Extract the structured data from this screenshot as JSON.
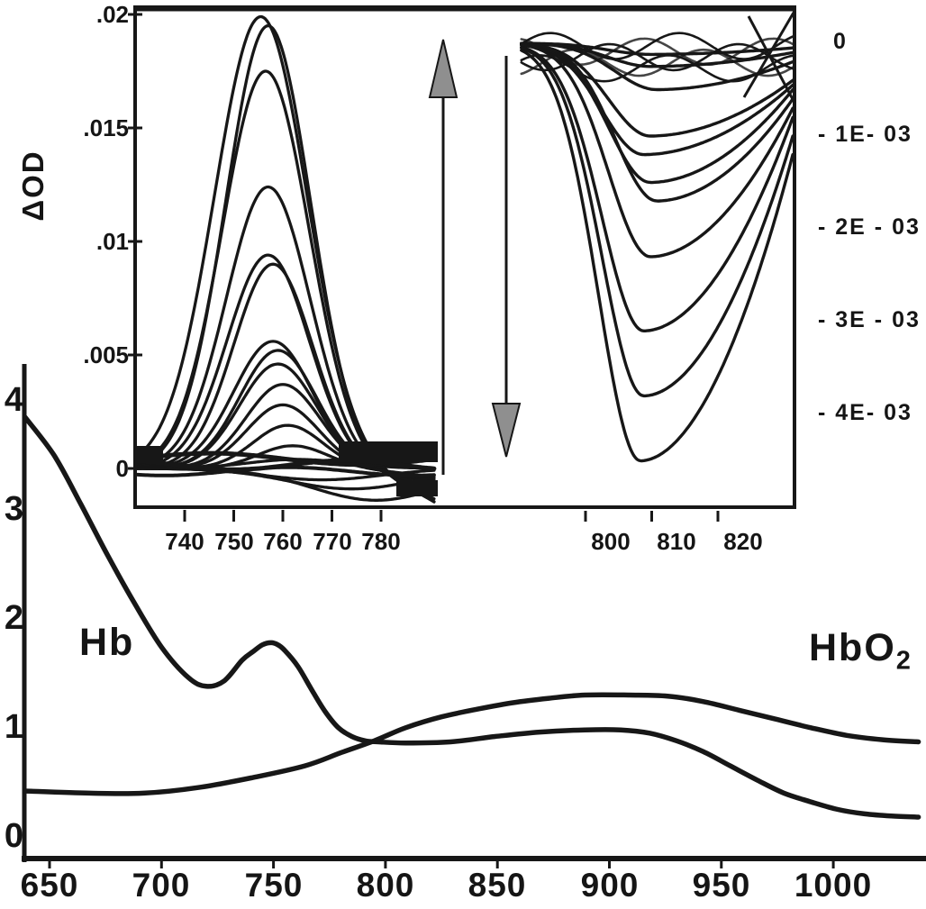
{
  "labels": {
    "delta_od": "ΔOD",
    "hb": "Hb",
    "hbo2_main": "HbO",
    "hbo2_sub": "2"
  },
  "colors": {
    "ink": "#171717",
    "background": "#ffffff",
    "arrowhead_fill": "#8f8f8f"
  },
  "chart_data": [
    {
      "id": "main-spectra",
      "type": "line",
      "description": "Absorption spectra of Hb and HbO2 versus wavelength (nm)",
      "xlim": [
        639,
        1041
      ],
      "ylim": [
        0,
        4.4
      ],
      "xticks": [
        650,
        700,
        750,
        800,
        850,
        900,
        950,
        1000
      ],
      "xtick_labels": [
        "650",
        "700",
        "750",
        "800",
        "850",
        "900",
        "950",
        "1000"
      ],
      "yticks": [
        4,
        3,
        2,
        1,
        0
      ],
      "ytick_labels": [
        "4",
        "3",
        "2",
        "1",
        "0"
      ],
      "series": [
        {
          "name": "Hb",
          "x": [
            639,
            652,
            664,
            676,
            688,
            700,
            712,
            720,
            728,
            736,
            741,
            745,
            749,
            752,
            755,
            761,
            767,
            773,
            779,
            785,
            791,
            797,
            809,
            829,
            849,
            869,
            889,
            905,
            918,
            930,
            942,
            954,
            966,
            978,
            990,
            1002,
            1014,
            1026,
            1038
          ],
          "y": [
            3.86,
            3.51,
            3.06,
            2.59,
            2.15,
            1.75,
            1.47,
            1.39,
            1.44,
            1.63,
            1.71,
            1.77,
            1.79,
            1.77,
            1.72,
            1.57,
            1.36,
            1.16,
            1.01,
            0.93,
            0.89,
            0.88,
            0.87,
            0.88,
            0.93,
            0.97,
            0.99,
            0.99,
            0.96,
            0.89,
            0.79,
            0.66,
            0.53,
            0.41,
            0.33,
            0.26,
            0.22,
            0.2,
            0.19
          ]
        },
        {
          "name": "HbO2",
          "x": [
            639,
            668,
            692,
            716,
            740,
            764,
            780,
            795,
            809,
            825,
            841,
            857,
            873,
            889,
            909,
            926,
            942,
            958,
            974,
            990,
            1006,
            1022,
            1038
          ],
          "y": [
            0.43,
            0.41,
            0.41,
            0.46,
            0.55,
            0.66,
            0.78,
            0.89,
            1.01,
            1.11,
            1.18,
            1.24,
            1.28,
            1.31,
            1.31,
            1.3,
            1.25,
            1.17,
            1.09,
            1.01,
            0.94,
            0.9,
            0.88
          ]
        }
      ]
    },
    {
      "id": "inset-left-760nm-family",
      "type": "line-family",
      "description": "ΔOD difference spectra family peaking near 757 nm, amplitude increasing (up arrow)",
      "ylabel": "ΔOD",
      "xlim": [
        730,
        791
      ],
      "ylim": [
        -0.0022,
        0.0205
      ],
      "xticks": [
        740,
        750,
        760,
        770,
        780
      ],
      "xtick_labels": [
        "740",
        "750",
        "760",
        "770",
        "780"
      ],
      "yticks": [
        0.02,
        0.015,
        0.01,
        0.005,
        0
      ],
      "ytick_labels": [
        ".02",
        ".015",
        ".01",
        ".005",
        "0"
      ],
      "trend_arrow": "up",
      "curves": [
        {
          "peak_od": 0.0199,
          "center_nm": 755.5,
          "width_nm": 9.4
        },
        {
          "peak_od": 0.0195,
          "center_nm": 757.0,
          "width_nm": 8.6
        },
        {
          "peak_od": 0.0175,
          "center_nm": 756.5,
          "width_nm": 8.8
        },
        {
          "peak_od": 0.0124,
          "center_nm": 757.0,
          "width_nm": 8.5
        },
        {
          "peak_od": 0.0094,
          "center_nm": 757.0,
          "width_nm": 8.3
        },
        {
          "peak_od": 0.009,
          "center_nm": 758.0,
          "width_nm": 8.0
        },
        {
          "peak_od": 0.0056,
          "center_nm": 758.0,
          "width_nm": 8.0
        },
        {
          "peak_od": 0.0052,
          "center_nm": 759.0,
          "width_nm": 7.8
        },
        {
          "peak_od": 0.0046,
          "center_nm": 759.0,
          "width_nm": 7.8
        },
        {
          "peak_od": 0.0037,
          "center_nm": 760.0,
          "width_nm": 7.5
        },
        {
          "peak_od": 0.0028,
          "center_nm": 760.0,
          "width_nm": 7.3
        },
        {
          "peak_od": 0.0019,
          "center_nm": 761.0,
          "width_nm": 7.0
        },
        {
          "peak_od": 0.001,
          "center_nm": 762.0,
          "width_nm": 7.0
        },
        {
          "peak_od": 0.0004,
          "center_nm": 763.0,
          "width_nm": 10.0
        },
        {
          "peak_od": -0.0005,
          "center_nm": 768.0,
          "width_nm": 12.0
        },
        {
          "peak_od": -0.0009,
          "center_nm": 774.0,
          "width_nm": 13.0
        },
        {
          "peak_od": -0.0014,
          "center_nm": 779.0,
          "width_nm": 13.0
        }
      ]
    },
    {
      "id": "inset-right-805nm-family",
      "type": "line-family",
      "description": "ΔOD difference spectra family dipping near 805 nm, amplitude increasing downward (down arrow)",
      "xlim": [
        786.5,
        827.5
      ],
      "ylim": [
        -0.0047,
        0.0004
      ],
      "xticks": [
        800,
        810,
        820
      ],
      "xtick_labels": [
        "800",
        "810",
        "820"
      ],
      "right_axis_values": [
        0,
        -0.001,
        -0.002,
        -0.003,
        -0.004
      ],
      "right_axis_labels": [
        "0",
        "- 1E- 03",
        "- 2E - 03",
        "- 3E - 03",
        "- 4E- 03"
      ],
      "trend_arrow": "down",
      "curves": [
        {
          "dip_od": -0.00012,
          "center_nm": 806.0,
          "edge_od": -5e-05
        },
        {
          "dip_od": -0.00025,
          "center_nm": 806.0,
          "edge_od": -0.0001
        },
        {
          "dip_od": -0.0005,
          "center_nm": 807.0,
          "edge_od": -0.0002
        },
        {
          "dip_od": -0.001,
          "center_nm": 806.0,
          "edge_od": -0.0004
        },
        {
          "dip_od": -0.0012,
          "center_nm": 805.0,
          "edge_od": -0.00045
        },
        {
          "dip_od": -0.0015,
          "center_nm": 806.0,
          "edge_od": -0.0005
        },
        {
          "dip_od": -0.0017,
          "center_nm": 807.0,
          "edge_od": -0.0006
        },
        {
          "dip_od": -0.0023,
          "center_nm": 806.0,
          "edge_od": -0.0007
        },
        {
          "dip_od": -0.0031,
          "center_nm": 805.0,
          "edge_od": -0.0008
        },
        {
          "dip_od": -0.0038,
          "center_nm": 805.0,
          "edge_od": -0.001
        },
        {
          "dip_od": -0.0045,
          "center_nm": 804.5,
          "edge_od": -0.0012
        }
      ]
    }
  ]
}
